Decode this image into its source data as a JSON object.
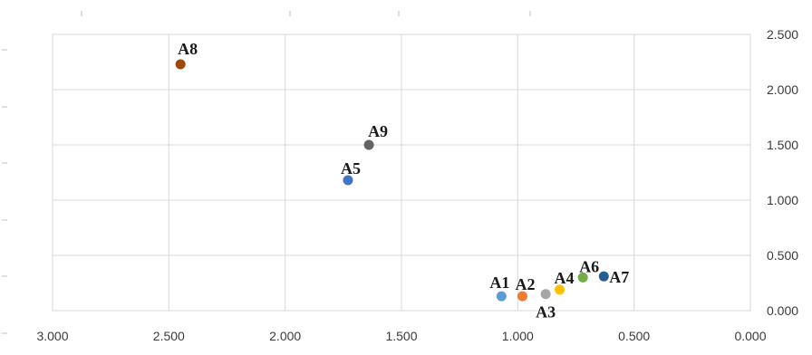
{
  "chart_data": {
    "type": "scatter",
    "title": "",
    "xlabel": "",
    "ylabel": "",
    "x_reversed": true,
    "y_axis_side": "right",
    "xlim": [
      0,
      3
    ],
    "ylim": [
      0,
      2.5
    ],
    "x_ticks": [
      "3.000",
      "2.500",
      "2.000",
      "1.500",
      "1.000",
      "0.500",
      "0.000"
    ],
    "y_ticks": [
      "0.000",
      "0.500",
      "1.000",
      "1.500",
      "2.000",
      "2.500"
    ],
    "grid": true,
    "legend": "none",
    "points": [
      {
        "label": "A1",
        "x": 1.07,
        "y": 0.13,
        "color": "#5b9bd5"
      },
      {
        "label": "A2",
        "x": 0.98,
        "y": 0.13,
        "color": "#ed7d31"
      },
      {
        "label": "A3",
        "x": 0.88,
        "y": 0.15,
        "color": "#a5a5a5"
      },
      {
        "label": "A4",
        "x": 0.82,
        "y": 0.19,
        "color": "#ffc000"
      },
      {
        "label": "A5",
        "x": 1.73,
        "y": 1.18,
        "color": "#4472c4"
      },
      {
        "label": "A6",
        "x": 0.72,
        "y": 0.3,
        "color": "#70ad47"
      },
      {
        "label": "A7",
        "x": 0.63,
        "y": 0.31,
        "color": "#255e91"
      },
      {
        "label": "A8",
        "x": 2.45,
        "y": 2.23,
        "color": "#9e480e"
      },
      {
        "label": "A9",
        "x": 1.64,
        "y": 1.5,
        "color": "#636363"
      }
    ]
  }
}
